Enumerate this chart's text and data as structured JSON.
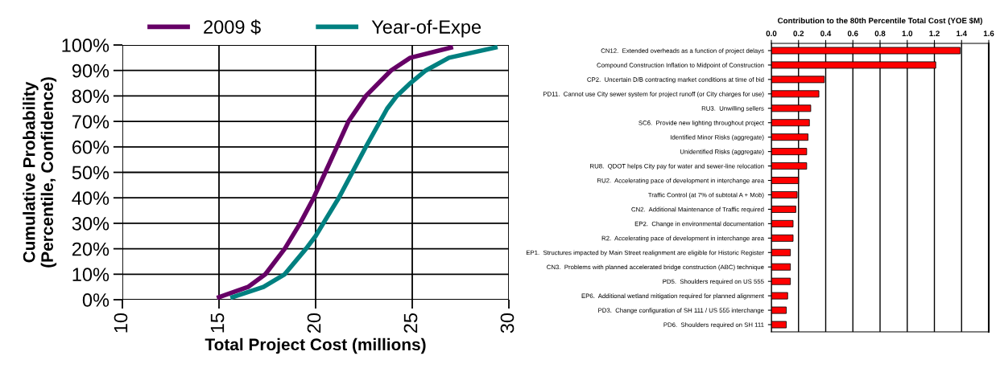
{
  "chart_data": [
    {
      "type": "line",
      "xlabel": "Total Project Cost (millions)",
      "ylabel": "Cumulative Probability\n(Percentile, Confidence)",
      "xlim": [
        10,
        30
      ],
      "xticks": [
        10,
        15,
        20,
        25,
        30
      ],
      "ylim": [
        0,
        100
      ],
      "yticks": [
        {
          "value": 0,
          "label": "0%"
        },
        {
          "value": 10,
          "label": "10%"
        },
        {
          "value": 20,
          "label": "20%"
        },
        {
          "value": 30,
          "label": "30%"
        },
        {
          "value": 40,
          "label": "40%"
        },
        {
          "value": 50,
          "label": "50%"
        },
        {
          "value": 60,
          "label": "60%"
        },
        {
          "value": 70,
          "label": "70%"
        },
        {
          "value": 80,
          "label": "80%"
        },
        {
          "value": 90,
          "label": "90%"
        },
        {
          "value": 100,
          "label": "100%"
        }
      ],
      "grid": true,
      "legend": "top",
      "marker": "none",
      "line_style": "solid",
      "series": [
        {
          "name": "2009 $",
          "color": "#660066",
          "x": [
            15.0,
            16.5,
            17.4,
            18.4,
            19.2,
            19.9,
            20.5,
            21.1,
            21.7,
            22.6,
            23.9,
            24.9,
            27.0
          ],
          "values": [
            1,
            5,
            10,
            20,
            30,
            40,
            50,
            60,
            70,
            80,
            90,
            95,
            99
          ]
        },
        {
          "name": "Year-of-Expe",
          "color": "#008080",
          "x": [
            15.7,
            17.3,
            18.4,
            19.5,
            20.0,
            20.4,
            21.2,
            21.9,
            22.6,
            23.7,
            24.2,
            24.9,
            25.7,
            26.9,
            29.3
          ],
          "values": [
            1,
            5,
            10,
            20,
            25,
            30,
            40,
            50,
            60,
            75,
            80,
            85,
            90,
            95,
            99
          ]
        }
      ]
    },
    {
      "type": "bar",
      "orientation": "horizontal",
      "title": "Contribution to the 80th Percentile Total Cost (YOE $M)",
      "xlim": [
        0,
        1.6
      ],
      "xticks": [
        {
          "value": 0,
          "label": "0.0"
        },
        {
          "value": 0.2,
          "label": "0.2"
        },
        {
          "value": 0.4,
          "label": "0.4"
        },
        {
          "value": 0.6,
          "label": "0.6"
        },
        {
          "value": 0.8,
          "label": "0.8"
        },
        {
          "value": 1.0,
          "label": "1.0"
        },
        {
          "value": 1.2,
          "label": "1.2"
        },
        {
          "value": 1.4,
          "label": "1.4"
        },
        {
          "value": 1.6,
          "label": "1.6"
        }
      ],
      "grid": "x",
      "color": "#ff0000",
      "categories": [
        "CN12.  Extended overheads as a function of project delays",
        "Compound Construction Inflation to Midpoint of Construction",
        "CP2.  Uncertain D/B contracting market conditions at time of bid",
        "PD11.  Cannot use City sewer system for project runoff (or City charges for use)",
        "RU3.  Unwilling sellers",
        "SC6.  Provide new lighting throughout project",
        "Identified Minor Risks (aggregate)",
        "Unidentified Risks (aggregate)",
        "RU8.  QDOT helps City pay for water and sewer-line relocation",
        "RU2.  Accelerating pace of development in interchange area",
        "Traffic Control (at 7% of subtotal A + Mob)",
        "CN2.  Additional Maintenance of Traffic required",
        "EP2.  Change in environmental documentation",
        "R2.  Accelerating pace of development in interchange area",
        "EP1.  Structures impacted by Main Street realignment are eligible for Historic Register",
        "CN3.  Problems with planned accelerated bridge construction (ABC) technique",
        "PD5.  Shoulders required on US 555",
        "EP6.  Additional wetland mitigation required for planned alignment",
        "PD3.  Change configuration of SH 111 / US 555 interchange",
        "PD6.  Shoulders required on SH 111"
      ],
      "values": [
        1.39,
        1.21,
        0.39,
        0.35,
        0.29,
        0.28,
        0.27,
        0.26,
        0.26,
        0.2,
        0.19,
        0.18,
        0.16,
        0.16,
        0.14,
        0.14,
        0.14,
        0.12,
        0.11,
        0.11
      ]
    }
  ]
}
